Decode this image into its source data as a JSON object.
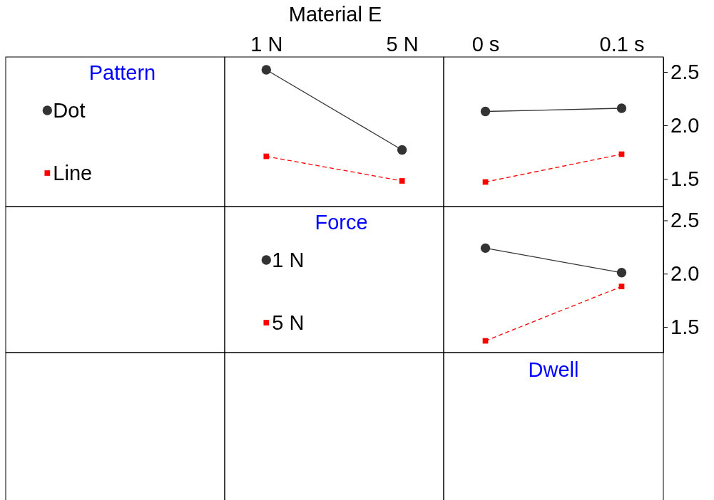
{
  "chart_data": [
    {
      "type": "line",
      "title": "Material E",
      "legend_title": "Pattern",
      "legend": "left",
      "tick_labels": "x",
      "categories": [
        "1 N",
        "5 N"
      ],
      "ylim": [
        1.24,
        2.64
      ],
      "series": [
        {
          "name": "Dot",
          "color": "#333333",
          "marker": "circle",
          "line_style": "solid",
          "values": [
            2.52,
            1.77
          ]
        },
        {
          "name": "Line",
          "color": "#ff0000",
          "marker": "square",
          "line_style": "dashed",
          "values": [
            1.71,
            1.48
          ]
        }
      ]
    },
    {
      "type": "line",
      "categories": [
        "0 s",
        "0.1 s"
      ],
      "ylim": [
        1.24,
        2.64
      ],
      "yticks": [
        {
          "value": 1.5,
          "label": "1.5"
        },
        {
          "value": 2,
          "label": "2.0"
        },
        {
          "value": 2.5,
          "label": "2.5"
        }
      ],
      "series": [
        {
          "color": "#333333",
          "marker": "circle",
          "line_style": "solid",
          "values": [
            2.13,
            2.16
          ]
        },
        {
          "color": "#ff0000",
          "marker": "square",
          "line_style": "dashed",
          "values": [
            1.47,
            1.73
          ]
        }
      ]
    },
    {
      "type": "line",
      "legend_title": "Force",
      "legend": "left",
      "xlabel": "Dwell",
      "tick_labels": "y",
      "categories": [
        null,
        null
      ],
      "ylim": [
        1.26,
        2.63
      ],
      "yticks": [
        {
          "value": 1.5,
          "label": "1.5"
        },
        {
          "value": 2,
          "label": "2.0"
        },
        {
          "value": 2.5,
          "label": "2.5"
        }
      ],
      "series": [
        {
          "name": "1 N",
          "color": "#333333",
          "marker": "circle",
          "line_style": "solid",
          "values": [
            2.24,
            2.01
          ]
        },
        {
          "name": "5 N",
          "color": "#ff0000",
          "marker": "square",
          "line_style": "dashed",
          "values": [
            1.37,
            1.88
          ]
        }
      ]
    }
  ]
}
